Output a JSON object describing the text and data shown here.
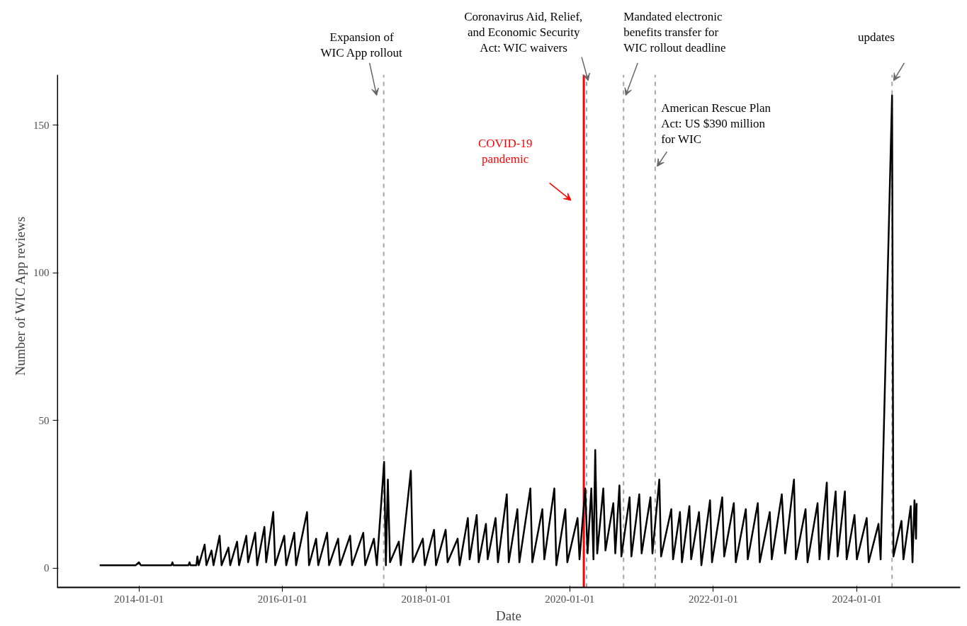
{
  "chart_data": {
    "type": "line",
    "xlabel": "Date",
    "ylabel": "Number of WIC App reviews",
    "xlim": [
      "2012-11-10",
      "2025-06-10"
    ],
    "ylim": [
      -6.5,
      167
    ],
    "xticks": [
      {
        "value": "2014-01-01",
        "label": "2014-01-01"
      },
      {
        "value": "2016-01-01",
        "label": "2016-01-01"
      },
      {
        "value": "2018-01-01",
        "label": "2018-01-01"
      },
      {
        "value": "2020-01-01",
        "label": "2020-01-01"
      },
      {
        "value": "2022-01-01",
        "label": "2022-01-01"
      },
      {
        "value": "2024-01-01",
        "label": "2024-01-01"
      }
    ],
    "yticks": [
      0,
      50,
      100,
      150
    ],
    "grid": false,
    "line_style": "solid",
    "marker": "none",
    "ref_lines": [
      {
        "axis": "x",
        "value": "2017-05-30",
        "label": "Expansion of\nWIC App rollout",
        "color": "#a6a6a6",
        "line_style": "dashed"
      },
      {
        "axis": "x",
        "value": "2020-03-13",
        "label": "COVID-19\npandemic",
        "color": "#ff0000",
        "line_style": "solid"
      },
      {
        "axis": "x",
        "value": "2020-03-27",
        "label": "Coronavirus Aid, Relief,\nand Economic Security\nAct: WIC waivers",
        "color": "#a6a6a6",
        "line_style": "dashed"
      },
      {
        "axis": "x",
        "value": "2020-10-01",
        "label": "Mandated electronic\nbenefits transfer for\nWIC rollout deadline",
        "color": "#a6a6a6",
        "line_style": "dashed"
      },
      {
        "axis": "x",
        "value": "2021-03-11",
        "label": "American Rescue Plan\nAct: US $390 million\nfor WIC",
        "color": "#a6a6a6",
        "line_style": "dashed"
      },
      {
        "axis": "x",
        "value": "2024-06-28",
        "label": "updates",
        "color": "#a6a6a6",
        "line_style": "dashed"
      }
    ],
    "series": [
      {
        "color": "#000000",
        "x": [
          "2013-06-15",
          "2013-12-15",
          "2014-01-01",
          "2014-01-10",
          "2014-06-15",
          "2014-06-20",
          "2014-06-25",
          "2014-09-10",
          "2014-09-15",
          "2014-09-20",
          "2014-10-20",
          "2014-10-25",
          "2014-11-01",
          "2014-12-01",
          "2014-12-10",
          "2015-01-05",
          "2015-01-15",
          "2015-02-15",
          "2015-02-25",
          "2015-04-01",
          "2015-04-10",
          "2015-05-15",
          "2015-05-25",
          "2015-07-01",
          "2015-07-10",
          "2015-08-15",
          "2015-08-25",
          "2015-10-01",
          "2015-10-10",
          "2015-11-15",
          "2015-11-25",
          "2016-01-10",
          "2016-01-20",
          "2016-03-01",
          "2016-03-10",
          "2016-05-05",
          "2016-05-15",
          "2016-06-20",
          "2016-07-01",
          "2016-08-15",
          "2016-08-25",
          "2016-10-10",
          "2016-10-20",
          "2016-12-10",
          "2016-12-20",
          "2017-02-15",
          "2017-02-25",
          "2017-04-10",
          "2017-04-25",
          "2017-06-01",
          "2017-06-10",
          "2017-06-20",
          "2017-07-01",
          "2017-08-15",
          "2017-08-25",
          "2017-10-15",
          "2017-10-25",
          "2017-12-15",
          "2017-12-25",
          "2018-02-10",
          "2018-02-20",
          "2018-04-10",
          "2018-04-20",
          "2018-06-10",
          "2018-06-20",
          "2018-08-01",
          "2018-08-10",
          "2018-09-15",
          "2018-09-25",
          "2018-11-01",
          "2018-11-10",
          "2018-12-20",
          "2019-01-01",
          "2019-02-15",
          "2019-02-25",
          "2019-04-10",
          "2019-04-20",
          "2019-06-15",
          "2019-06-25",
          "2019-08-15",
          "2019-08-25",
          "2019-10-15",
          "2019-10-25",
          "2019-12-10",
          "2019-12-20",
          "2020-02-10",
          "2020-02-20",
          "2020-03-20",
          "2020-04-01",
          "2020-04-20",
          "2020-05-01",
          "2020-05-10",
          "2020-05-20",
          "2020-06-20",
          "2020-07-01",
          "2020-08-10",
          "2020-08-20",
          "2020-09-10",
          "2020-09-20",
          "2020-11-01",
          "2020-11-10",
          "2020-12-20",
          "2021-01-01",
          "2021-02-15",
          "2021-02-25",
          "2021-04-01",
          "2021-04-10",
          "2021-06-01",
          "2021-06-10",
          "2021-07-15",
          "2021-07-25",
          "2021-09-01",
          "2021-09-10",
          "2021-10-20",
          "2021-11-01",
          "2021-12-15",
          "2021-12-25",
          "2022-02-15",
          "2022-02-25",
          "2022-04-15",
          "2022-04-25",
          "2022-06-15",
          "2022-06-25",
          "2022-08-15",
          "2022-08-25",
          "2022-10-15",
          "2022-10-25",
          "2022-12-15",
          "2023-01-01",
          "2023-02-15",
          "2023-02-25",
          "2023-04-15",
          "2023-04-25",
          "2023-06-15",
          "2023-06-25",
          "2023-08-01",
          "2023-08-10",
          "2023-09-15",
          "2023-09-25",
          "2023-11-01",
          "2023-11-10",
          "2023-12-20",
          "2024-01-01",
          "2024-02-20",
          "2024-03-01",
          "2024-04-20",
          "2024-05-01",
          "2024-06-28",
          "2024-07-05",
          "2024-08-15",
          "2024-08-25",
          "2024-10-01",
          "2024-10-10",
          "2024-10-20",
          "2024-10-28",
          "2024-10-31"
        ],
        "values": [
          1,
          1,
          2,
          1,
          1,
          2,
          1,
          1,
          2,
          1,
          1,
          4,
          1,
          8,
          1,
          6,
          1,
          11,
          1,
          7,
          1,
          9,
          1,
          11,
          2,
          12,
          1,
          14,
          2,
          19,
          1,
          11,
          1,
          12,
          1,
          19,
          1,
          10,
          1,
          12,
          1,
          10,
          1,
          11,
          1,
          12,
          1,
          10,
          1,
          36,
          1,
          30,
          2,
          9,
          1,
          33,
          2,
          10,
          1,
          13,
          1,
          13,
          2,
          10,
          1,
          17,
          3,
          18,
          2,
          15,
          3,
          17,
          2,
          25,
          2,
          20,
          2,
          27,
          2,
          20,
          3,
          27,
          1,
          20,
          2,
          17,
          3,
          27,
          5,
          27,
          3,
          40,
          5,
          27,
          6,
          22,
          5,
          28,
          4,
          24,
          4,
          25,
          5,
          24,
          5,
          30,
          4,
          20,
          3,
          19,
          2,
          21,
          3,
          19,
          1,
          23,
          2,
          24,
          4,
          22,
          2,
          20,
          3,
          22,
          2,
          19,
          3,
          25,
          5,
          30,
          3,
          20,
          2,
          22,
          3,
          29,
          3,
          26,
          4,
          26,
          3,
          18,
          3,
          17,
          2,
          15,
          3,
          160,
          4,
          16,
          3,
          21,
          2,
          23,
          10,
          22
        ]
      }
    ]
  }
}
